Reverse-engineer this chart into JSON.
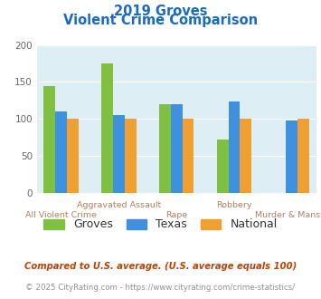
{
  "title_line1": "2019 Groves",
  "title_line2": "Violent Crime Comparison",
  "categories": [
    "All Violent Crime",
    "Aggravated Assault",
    "Rape",
    "Robbery",
    "Murder & Mans..."
  ],
  "series": {
    "Groves": [
      144,
      175,
      120,
      72,
      null
    ],
    "Texas": [
      110,
      105,
      120,
      123,
      98
    ],
    "National": [
      100,
      100,
      100,
      100,
      100
    ]
  },
  "colors": {
    "Groves": "#80c040",
    "Texas": "#4090e0",
    "National": "#f0a030"
  },
  "ylim": [
    0,
    200
  ],
  "yticks": [
    0,
    50,
    100,
    150,
    200
  ],
  "legend_labels": [
    "Groves",
    "Texas",
    "National"
  ],
  "footnote1": "Compared to U.S. average. (U.S. average equals 100)",
  "footnote2": "© 2025 CityRating.com - https://www.cityrating.com/crime-statistics/",
  "title_color": "#1a6abf",
  "footnote1_color": "#c04000",
  "footnote2_color": "#909090",
  "label_color": "#b08060",
  "bg_color": "#ddeef4",
  "fig_bg": "#ffffff",
  "bar_width": 0.2
}
